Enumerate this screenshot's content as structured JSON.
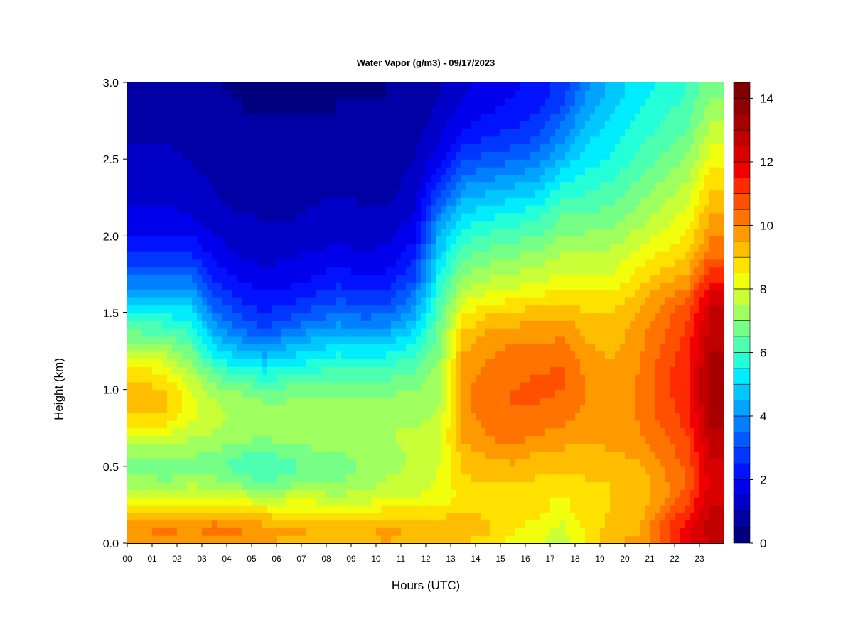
{
  "chart_data": {
    "type": "heatmap",
    "title": "Water Vapor (g/m3) - 09/17/2023",
    "xlabel": "Hours (UTC)",
    "ylabel": "Height (km)",
    "x_ticks": [
      "00",
      "01",
      "02",
      "03",
      "04",
      "05",
      "06",
      "07",
      "08",
      "09",
      "10",
      "11",
      "12",
      "13",
      "14",
      "15",
      "16",
      "17",
      "18",
      "19",
      "20",
      "21",
      "22",
      "23"
    ],
    "y_ticks": [
      "0.0",
      "0.5",
      "1.0",
      "1.5",
      "2.0",
      "2.5",
      "3.0"
    ],
    "xlim": [
      0,
      24
    ],
    "ylim": [
      0,
      3.0
    ],
    "colorbar": {
      "range": [
        0,
        14.5
      ],
      "step": 0.5,
      "ticks": [
        "0",
        "2",
        "4",
        "6",
        "8",
        "10",
        "12",
        "14"
      ],
      "colors": [
        "#00007f",
        "#0000a4",
        "#0000c8",
        "#0000ed",
        "#0012ff",
        "#0036ff",
        "#005aff",
        "#007fff",
        "#00a4ff",
        "#00c8ff",
        "#00edff",
        "#25ffd8",
        "#4dffb0",
        "#76ff87",
        "#9fff5f",
        "#c8ff36",
        "#f1ff0d",
        "#ffe100",
        "#ffbd00",
        "#ff9900",
        "#ff7400",
        "#ff5000",
        "#ff2b00",
        "#f00000",
        "#d80000",
        "#c00000",
        "#a80000",
        "#900000",
        "#7f0000"
      ]
    },
    "heights_km": [
      0.0,
      0.1,
      0.2,
      0.3,
      0.4,
      0.5,
      0.6,
      0.7,
      0.8,
      0.9,
      1.0,
      1.1,
      1.2,
      1.3,
      1.4,
      1.5,
      1.6,
      1.7,
      1.8,
      1.9,
      2.0,
      2.1,
      2.2,
      2.3,
      2.4,
      2.5,
      2.6,
      2.7,
      2.8,
      2.9,
      3.0
    ],
    "hours": [
      0.5,
      1.5,
      2.5,
      3.5,
      4.5,
      5.5,
      6.5,
      7.5,
      8.5,
      9.5,
      10.5,
      11.5,
      12.5,
      13.5,
      14.5,
      15.5,
      16.5,
      17.5,
      18.5,
      19.5,
      20.5,
      21.5,
      22.5,
      23.5
    ],
    "values": [
      [
        9.6,
        9.7,
        9.6,
        9.6,
        9.7,
        9.5,
        9.4,
        9.4,
        9.2,
        9.3,
        9.5,
        9.2,
        9.3,
        9.0,
        8.8,
        8.3,
        8.0,
        7.8,
        8.5,
        9.5,
        9.6,
        10.5,
        12.0,
        12.5
      ],
      [
        10.0,
        10.2,
        10.0,
        10.3,
        10.2,
        9.7,
        9.6,
        9.5,
        9.3,
        9.4,
        9.7,
        9.4,
        9.4,
        9.3,
        9.1,
        8.6,
        8.2,
        7.9,
        8.7,
        9.2,
        9.4,
        10.8,
        11.8,
        13.0
      ],
      [
        9.3,
        9.0,
        9.2,
        9.1,
        9.0,
        8.8,
        8.7,
        8.6,
        8.6,
        8.7,
        8.7,
        8.7,
        8.8,
        9.0,
        8.9,
        8.8,
        8.7,
        8.2,
        8.9,
        9.0,
        9.1,
        10.3,
        11.3,
        12.6
      ],
      [
        8.0,
        7.8,
        8.2,
        8.1,
        7.8,
        7.6,
        7.8,
        7.8,
        7.6,
        7.7,
        8.0,
        8.0,
        8.2,
        8.6,
        8.7,
        8.6,
        8.6,
        8.4,
        8.9,
        9.0,
        9.1,
        9.8,
        10.8,
        12.4
      ],
      [
        7.3,
        7.0,
        7.3,
        7.2,
        6.8,
        6.5,
        6.7,
        6.9,
        7.0,
        7.2,
        7.6,
        7.7,
        8.1,
        8.9,
        9.0,
        9.0,
        8.9,
        8.8,
        9.0,
        9.0,
        9.2,
        9.8,
        10.6,
        12.3
      ],
      [
        6.8,
        6.6,
        6.8,
        6.6,
        6.2,
        6.0,
        6.3,
        6.6,
        6.8,
        7.0,
        7.3,
        7.6,
        8.0,
        9.1,
        9.3,
        9.4,
        9.2,
        9.1,
        9.1,
        9.2,
        9.4,
        10.0,
        10.6,
        12.4
      ],
      [
        7.3,
        7.2,
        7.1,
        7.0,
        6.6,
        6.5,
        6.7,
        6.9,
        7.0,
        7.2,
        7.3,
        7.6,
        7.9,
        9.3,
        9.6,
        9.8,
        9.5,
        9.4,
        9.3,
        9.5,
        9.6,
        10.2,
        10.8,
        12.6
      ],
      [
        8.0,
        7.9,
        7.6,
        7.4,
        7.2,
        7.1,
        7.2,
        7.3,
        7.4,
        7.5,
        7.5,
        7.6,
        7.8,
        9.6,
        10.0,
        10.3,
        10.0,
        9.8,
        9.6,
        9.7,
        9.9,
        10.4,
        11.0,
        12.8
      ],
      [
        8.8,
        8.7,
        8.1,
        7.6,
        7.4,
        7.3,
        7.3,
        7.4,
        7.4,
        7.4,
        7.4,
        7.4,
        7.6,
        9.8,
        10.2,
        10.4,
        10.3,
        10.1,
        9.8,
        9.8,
        10.0,
        10.6,
        11.2,
        13.1
      ],
      [
        9.3,
        9.1,
        8.3,
        7.6,
        7.3,
        7.1,
        7.1,
        7.2,
        7.2,
        7.2,
        7.2,
        7.2,
        7.5,
        9.9,
        10.3,
        10.5,
        10.5,
        10.3,
        9.9,
        9.8,
        10.0,
        10.7,
        11.3,
        13.3
      ],
      [
        9.2,
        9.0,
        8.1,
        7.2,
        6.9,
        6.6,
        6.7,
        6.8,
        6.9,
        6.9,
        6.9,
        7.0,
        7.4,
        9.9,
        10.3,
        10.5,
        10.6,
        10.5,
        10.0,
        9.8,
        10.0,
        10.8,
        11.4,
        13.4
      ],
      [
        8.8,
        8.5,
        7.6,
        6.5,
        6.0,
        5.7,
        5.9,
        6.1,
        6.3,
        6.3,
        6.3,
        6.6,
        7.2,
        9.8,
        10.2,
        10.4,
        10.5,
        10.6,
        9.9,
        9.7,
        10.0,
        10.8,
        11.4,
        13.3
      ],
      [
        8.1,
        7.8,
        7.0,
        5.6,
        5.0,
        4.7,
        5.1,
        5.4,
        5.7,
        5.6,
        5.7,
        6.1,
        7.0,
        9.6,
        10.0,
        10.2,
        10.3,
        10.4,
        9.7,
        9.5,
        9.9,
        10.7,
        11.3,
        13.1
      ],
      [
        7.2,
        7.0,
        6.4,
        4.9,
        4.2,
        3.8,
        4.3,
        4.7,
        5.0,
        4.8,
        5.0,
        5.5,
        6.8,
        9.3,
        9.8,
        10.0,
        10.0,
        10.1,
        9.5,
        9.3,
        9.8,
        10.5,
        11.2,
        12.9
      ],
      [
        6.3,
        6.2,
        5.8,
        4.2,
        3.5,
        3.0,
        3.5,
        3.9,
        4.2,
        4.0,
        4.2,
        4.9,
        6.6,
        8.9,
        9.4,
        9.6,
        9.7,
        9.8,
        9.3,
        9.2,
        9.7,
        10.4,
        11.1,
        12.8
      ],
      [
        5.5,
        5.4,
        5.2,
        3.6,
        2.9,
        2.5,
        2.8,
        3.2,
        3.5,
        3.3,
        3.4,
        4.3,
        6.3,
        8.4,
        8.9,
        9.1,
        9.2,
        9.4,
        9.0,
        9.0,
        9.5,
        10.2,
        10.9,
        12.6
      ],
      [
        4.6,
        4.5,
        4.5,
        3.0,
        2.4,
        2.1,
        2.3,
        2.6,
        2.9,
        2.7,
        2.8,
        3.7,
        6.0,
        7.8,
        8.2,
        8.4,
        8.6,
        8.8,
        8.6,
        8.6,
        9.2,
        9.9,
        10.5,
        12.2
      ],
      [
        3.8,
        3.7,
        3.8,
        2.5,
        2.0,
        1.8,
        1.9,
        2.1,
        2.4,
        2.2,
        2.3,
        3.1,
        5.6,
        7.3,
        7.6,
        7.8,
        8.0,
        8.3,
        8.2,
        8.2,
        8.8,
        9.4,
        9.8,
        11.6
      ],
      [
        3.0,
        3.0,
        3.1,
        2.1,
        1.7,
        1.5,
        1.6,
        1.8,
        2.0,
        1.8,
        1.9,
        2.6,
        5.2,
        6.8,
        7.1,
        7.3,
        7.5,
        7.8,
        7.8,
        7.9,
        8.4,
        8.9,
        9.3,
        11.0
      ],
      [
        2.4,
        2.4,
        2.5,
        1.8,
        1.4,
        1.3,
        1.4,
        1.5,
        1.6,
        1.5,
        1.6,
        2.2,
        4.8,
        6.3,
        6.6,
        6.8,
        7.0,
        7.4,
        7.4,
        7.6,
        8.0,
        8.5,
        8.9,
        10.3
      ],
      [
        2.0,
        2.0,
        2.0,
        1.5,
        1.2,
        1.1,
        1.2,
        1.3,
        1.4,
        1.3,
        1.4,
        1.9,
        4.4,
        5.8,
        6.1,
        6.3,
        6.5,
        7.0,
        7.1,
        7.2,
        7.7,
        8.1,
        8.6,
        9.9
      ],
      [
        1.7,
        1.7,
        1.6,
        1.3,
        1.1,
        1.0,
        1.0,
        1.1,
        1.2,
        1.1,
        1.2,
        1.6,
        3.9,
        5.3,
        5.6,
        5.8,
        6.0,
        6.6,
        6.7,
        6.8,
        7.3,
        7.8,
        8.3,
        9.6
      ],
      [
        1.5,
        1.5,
        1.4,
        1.1,
        0.9,
        0.9,
        0.9,
        1.0,
        1.1,
        1.0,
        1.0,
        1.4,
        3.3,
        4.7,
        5.0,
        5.2,
        5.5,
        6.2,
        6.3,
        6.5,
        7.0,
        7.5,
        8.0,
        9.3
      ],
      [
        1.4,
        1.3,
        1.2,
        1.0,
        0.8,
        0.8,
        0.8,
        0.9,
        0.9,
        0.9,
        0.9,
        1.2,
        2.7,
        4.1,
        4.4,
        4.6,
        4.9,
        5.7,
        5.9,
        6.2,
        6.7,
        7.2,
        7.7,
        9.0
      ],
      [
        1.2,
        1.2,
        1.1,
        0.9,
        0.7,
        0.7,
        0.7,
        0.8,
        0.8,
        0.8,
        0.8,
        1.1,
        2.2,
        3.5,
        3.8,
        4.0,
        4.3,
        5.2,
        5.6,
        5.9,
        6.4,
        6.9,
        7.4,
        8.7
      ],
      [
        1.1,
        1.1,
        1.0,
        0.8,
        0.7,
        0.6,
        0.6,
        0.7,
        0.7,
        0.7,
        0.7,
        1.0,
        1.8,
        2.9,
        3.2,
        3.4,
        3.7,
        4.6,
        5.3,
        5.6,
        6.1,
        6.6,
        7.1,
        8.3
      ],
      [
        1.0,
        1.0,
        0.9,
        0.7,
        0.6,
        0.6,
        0.6,
        0.6,
        0.6,
        0.6,
        0.6,
        0.9,
        1.5,
        2.4,
        2.7,
        2.9,
        3.2,
        4.1,
        5.0,
        5.4,
        5.9,
        6.3,
        6.8,
        7.9
      ],
      [
        0.9,
        0.9,
        0.9,
        0.6,
        0.5,
        0.5,
        0.5,
        0.5,
        0.6,
        0.6,
        0.6,
        0.8,
        1.3,
        2.0,
        2.3,
        2.5,
        2.8,
        3.6,
        4.7,
        5.2,
        5.7,
        6.1,
        6.5,
        7.6
      ],
      [
        0.9,
        0.9,
        0.8,
        0.6,
        0.5,
        0.5,
        0.5,
        0.5,
        0.5,
        0.5,
        0.5,
        0.7,
        1.1,
        1.7,
        2.0,
        2.2,
        2.5,
        3.2,
        4.4,
        5.0,
        5.5,
        5.9,
        6.3,
        7.3
      ],
      [
        0.8,
        0.8,
        0.8,
        0.6,
        0.5,
        0.4,
        0.4,
        0.4,
        0.5,
        0.5,
        0.5,
        0.7,
        1.0,
        1.5,
        1.8,
        2.0,
        2.3,
        2.9,
        4.1,
        4.8,
        5.3,
        5.7,
        6.1,
        7.0
      ],
      [
        0.8,
        0.8,
        0.7,
        0.5,
        0.4,
        0.4,
        0.4,
        0.4,
        0.4,
        0.4,
        0.5,
        0.6,
        0.9,
        1.4,
        1.7,
        1.9,
        2.1,
        2.7,
        3.9,
        4.7,
        5.2,
        5.6,
        6.0,
        6.8
      ]
    ]
  }
}
